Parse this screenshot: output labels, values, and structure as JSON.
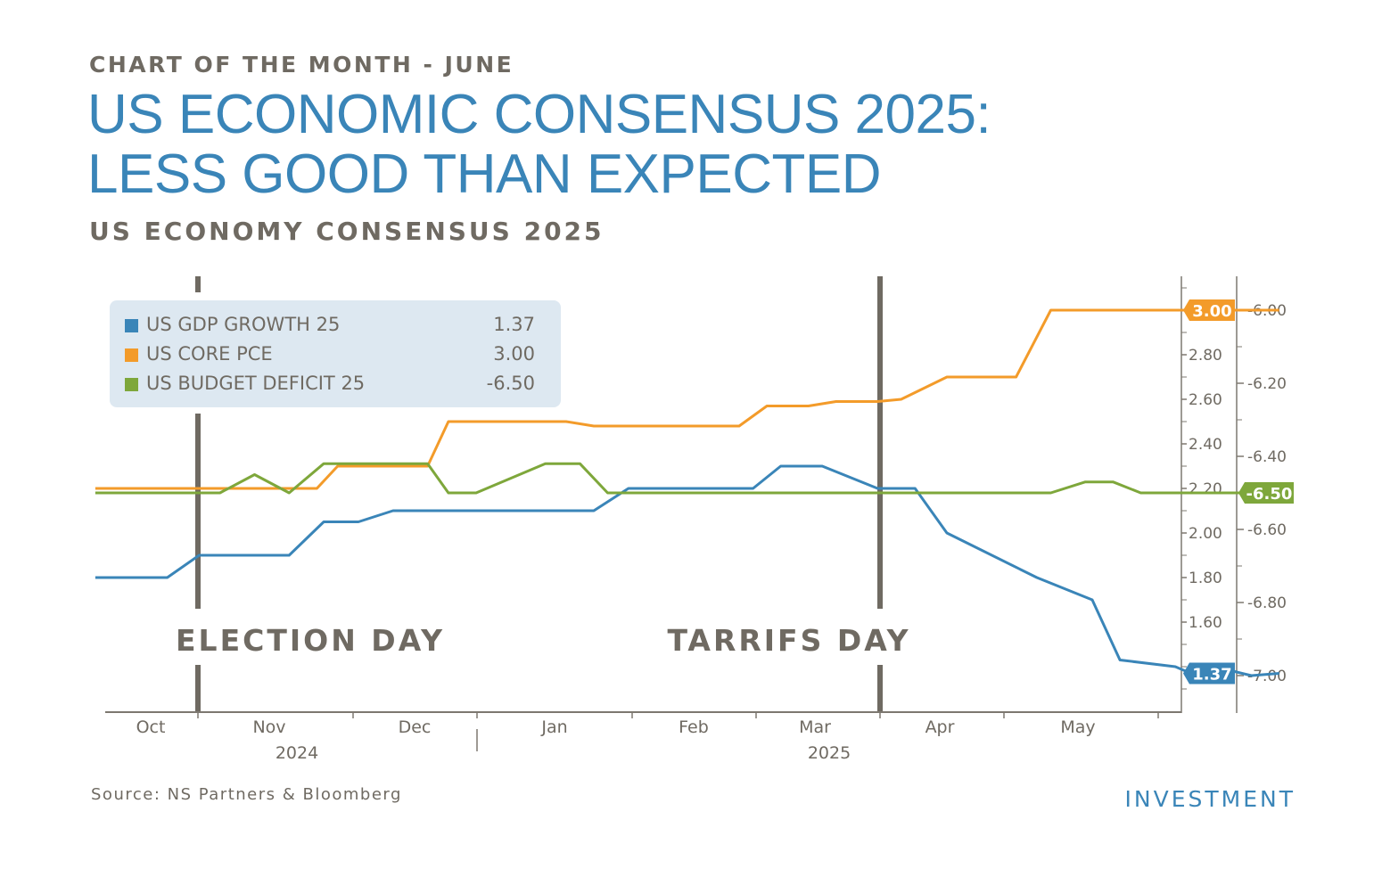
{
  "header": {
    "kicker": "CHART OF THE MONTH - JUNE",
    "title_line1": "US ECONOMIC CONSENSUS 2025:",
    "title_line2": "LESS GOOD THAN EXPECTED",
    "subtitle": "US ECONOMY CONSENSUS 2025"
  },
  "footer": {
    "source": "Source: NS Partners & Bloomberg",
    "brand": "INVESTMENT"
  },
  "legend": {
    "items": [
      {
        "label": "US GDP GROWTH 25",
        "value": "1.37",
        "color": "#3a85b8"
      },
      {
        "label": "US CORE PCE",
        "value": "3.00",
        "color": "#f39b2a"
      },
      {
        "label": "US BUDGET DEFICIT 25",
        "value": "-6.50",
        "color": "#7ea73b"
      }
    ]
  },
  "chart_data": {
    "type": "line",
    "x_unit": "month index (0 = 1 Oct 2024)",
    "x_range": [
      -0.5,
      7.75
    ],
    "month_ticks": [
      {
        "label": "Oct",
        "x": 0
      },
      {
        "label": "Nov",
        "x": 1
      },
      {
        "label": "Dec",
        "x": 2
      },
      {
        "label": "Jan",
        "x": 3
      },
      {
        "label": "Feb",
        "x": 4
      },
      {
        "label": "Mar",
        "x": 5
      },
      {
        "label": "Apr",
        "x": 6
      },
      {
        "label": "May",
        "x": 7
      }
    ],
    "years": [
      {
        "label": "2024",
        "x": 1.2
      },
      {
        "label": "2025",
        "x": 5.1
      }
    ],
    "y_left": {
      "label": "",
      "range": [
        1.2,
        3.2
      ],
      "ticks": [
        "1.60",
        "1.80",
        "2.00",
        "2.20",
        "2.40",
        "2.60",
        "2.80"
      ]
    },
    "y_right": {
      "label": "",
      "range": [
        -7.1,
        -5.9
      ],
      "ticks": [
        "-6.00",
        "-6.20",
        "-6.40",
        "-6.60",
        "-6.80",
        "-7.00"
      ]
    },
    "events": [
      {
        "label": "ELECTION DAY",
        "x": 0.25
      },
      {
        "label": "TARRIFS DAY",
        "x": 5.55
      }
    ],
    "series": [
      {
        "name": "US GDP GROWTH 25",
        "axis": "left",
        "color": "#3a85b8",
        "last_value": "1.37",
        "points": [
          [
            -0.4,
            1.8
          ],
          [
            0.12,
            1.8
          ],
          [
            0.35,
            1.9
          ],
          [
            1.0,
            1.9
          ],
          [
            1.25,
            2.05
          ],
          [
            1.5,
            2.05
          ],
          [
            1.75,
            2.1
          ],
          [
            3.2,
            2.1
          ],
          [
            3.45,
            2.2
          ],
          [
            4.35,
            2.2
          ],
          [
            4.55,
            2.3
          ],
          [
            4.85,
            2.3
          ],
          [
            5.25,
            2.2
          ],
          [
            5.52,
            2.2
          ],
          [
            5.75,
            2.0
          ],
          [
            6.4,
            1.8
          ],
          [
            6.8,
            1.7
          ],
          [
            7.0,
            1.43
          ],
          [
            7.4,
            1.4
          ],
          [
            7.55,
            1.36
          ],
          [
            7.75,
            1.39
          ],
          [
            7.95,
            1.36
          ],
          [
            8.15,
            1.37
          ]
        ]
      },
      {
        "name": "US CORE PCE",
        "axis": "left",
        "color": "#f39b2a",
        "last_value": "3.00",
        "points": [
          [
            -0.4,
            2.2
          ],
          [
            1.2,
            2.2
          ],
          [
            1.35,
            2.3
          ],
          [
            2.0,
            2.3
          ],
          [
            2.15,
            2.5
          ],
          [
            3.0,
            2.5
          ],
          [
            3.2,
            2.48
          ],
          [
            4.25,
            2.48
          ],
          [
            4.45,
            2.57
          ],
          [
            4.75,
            2.57
          ],
          [
            4.95,
            2.59
          ],
          [
            5.25,
            2.59
          ],
          [
            5.42,
            2.6
          ],
          [
            5.75,
            2.7
          ],
          [
            6.25,
            2.7
          ],
          [
            6.5,
            3.0
          ],
          [
            8.15,
            3.0
          ]
        ]
      },
      {
        "name": "US BUDGET DEFICIT 25",
        "axis": "right",
        "color": "#7ea73b",
        "last_value": "-6.50",
        "points": [
          [
            -0.4,
            -6.5
          ],
          [
            0.5,
            -6.5
          ],
          [
            0.75,
            -6.45
          ],
          [
            1.0,
            -6.5
          ],
          [
            1.25,
            -6.42
          ],
          [
            2.0,
            -6.42
          ],
          [
            2.15,
            -6.5
          ],
          [
            2.35,
            -6.5
          ],
          [
            2.85,
            -6.42
          ],
          [
            3.1,
            -6.42
          ],
          [
            3.3,
            -6.5
          ],
          [
            6.5,
            -6.5
          ],
          [
            6.75,
            -6.47
          ],
          [
            6.95,
            -6.47
          ],
          [
            7.15,
            -6.5
          ],
          [
            8.15,
            -6.5
          ]
        ]
      }
    ]
  }
}
